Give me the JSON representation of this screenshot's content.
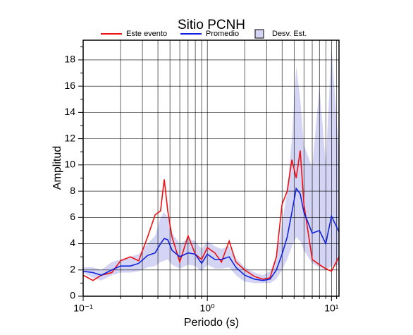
{
  "chart_data": {
    "type": "line",
    "title": "Sitio PCNH",
    "xlabel": "Periodo (s)",
    "ylabel": "Amplitud",
    "xscale": "log",
    "grid": true,
    "xlim": [
      0.1,
      11.5
    ],
    "ylim": [
      0,
      19.5
    ],
    "xticks": [
      {
        "value": 0.1,
        "label": "10⁻¹"
      },
      {
        "value": 1,
        "label": "10⁰"
      },
      {
        "value": 10,
        "label": "10¹"
      }
    ],
    "xminorticks": [
      0.2,
      0.3,
      0.4,
      0.5,
      0.6,
      0.7,
      0.8,
      0.9,
      2,
      3,
      4,
      5,
      6,
      7,
      8,
      9,
      11
    ],
    "yticks": [
      0,
      2,
      4,
      6,
      8,
      10,
      12,
      14,
      16,
      18
    ],
    "yminorticks": [
      1,
      3,
      5,
      7,
      9,
      11,
      13,
      15,
      17,
      19
    ],
    "x": [
      0.1,
      0.12,
      0.14,
      0.17,
      0.2,
      0.24,
      0.28,
      0.33,
      0.38,
      0.42,
      0.45,
      0.48,
      0.52,
      0.6,
      0.7,
      0.8,
      0.9,
      1.0,
      1.15,
      1.3,
      1.5,
      1.7,
      2.0,
      2.4,
      2.8,
      3.2,
      3.6,
      4.0,
      4.4,
      4.8,
      5.2,
      5.6,
      6.0,
      7.0,
      8.0,
      9.0,
      10.0,
      11.5
    ],
    "band": {
      "name": "Desv. Est.",
      "color": "#d4d4f5",
      "lower": [
        1.8,
        1.4,
        1.2,
        1.6,
        1.8,
        1.8,
        1.9,
        2.2,
        2.3,
        2.6,
        2.7,
        2.8,
        2.4,
        2.1,
        2.4,
        2.3,
        1.9,
        2.4,
        2.1,
        2.1,
        2.2,
        1.6,
        1.1,
        1.0,
        1.0,
        1.0,
        1.3,
        2.0,
        2.8,
        3.8,
        4.5,
        4.2,
        3.5,
        2.5,
        2.2,
        2.0,
        2.3,
        2.4
      ],
      "upper": [
        2.2,
        2.2,
        2.0,
        2.6,
        2.8,
        3.0,
        3.2,
        4.0,
        4.6,
        6.0,
        6.4,
        6.0,
        4.8,
        4.0,
        4.4,
        4.2,
        3.6,
        4.2,
        3.8,
        3.6,
        3.8,
        2.9,
        2.2,
        1.8,
        1.6,
        1.9,
        3.0,
        5.5,
        8.0,
        12.0,
        17.5,
        15.0,
        11.5,
        9.8,
        16.0,
        10.0,
        19.0,
        11.0
      ]
    },
    "series": [
      {
        "name": "Este evento",
        "color": "#ee1111",
        "values": [
          1.6,
          1.2,
          1.6,
          1.8,
          2.7,
          3.0,
          2.7,
          4.5,
          6.2,
          6.5,
          8.9,
          6.5,
          4.5,
          2.6,
          4.6,
          3.2,
          2.8,
          3.7,
          3.3,
          2.6,
          4.2,
          2.6,
          2.0,
          1.5,
          1.3,
          1.4,
          3.0,
          7.0,
          8.0,
          10.4,
          9.0,
          11.1,
          7.0,
          2.8,
          2.4,
          2.1,
          1.9,
          3.0
        ]
      },
      {
        "name": "Promedio",
        "color": "#1122dd",
        "values": [
          1.9,
          1.8,
          1.6,
          2.0,
          2.3,
          2.3,
          2.5,
          3.1,
          3.3,
          4.0,
          4.4,
          4.3,
          3.5,
          3.0,
          3.3,
          3.2,
          2.5,
          3.2,
          2.8,
          2.8,
          3.0,
          2.2,
          1.6,
          1.3,
          1.2,
          1.3,
          2.0,
          3.2,
          4.5,
          6.4,
          8.2,
          7.8,
          6.4,
          4.8,
          5.0,
          4.0,
          6.1,
          4.9
        ]
      }
    ]
  }
}
